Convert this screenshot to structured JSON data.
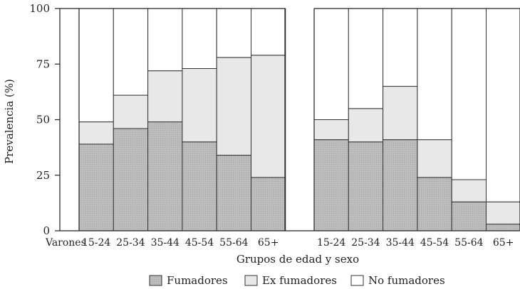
{
  "chart_data": {
    "type": "bar",
    "stacked": true,
    "ylabel": "Prevalencia (%)",
    "xlabel": "Grupos de edad y sexo",
    "ylim": [
      0,
      100
    ],
    "yticks": [
      0,
      25,
      50,
      75,
      100
    ],
    "grid": false,
    "legend_position": "bottom",
    "group_labels": [
      "Varones",
      ""
    ],
    "categories": [
      "15-24",
      "25-34",
      "35-44",
      "45-54",
      "55-64",
      "65+"
    ],
    "groups": [
      {
        "label": "Varones",
        "series": [
          {
            "name": "Fumadores",
            "values": [
              39,
              46,
              49,
              40,
              34,
              24
            ]
          },
          {
            "name": "Ex fumadores",
            "values": [
              10,
              15,
              23,
              33,
              44,
              55
            ]
          },
          {
            "name": "No fumadores",
            "values": [
              51,
              39,
              28,
              27,
              22,
              21
            ]
          }
        ]
      },
      {
        "label": "",
        "series": [
          {
            "name": "Fumadores",
            "values": [
              41,
              40,
              41,
              24,
              13,
              3
            ]
          },
          {
            "name": "Ex fumadores",
            "values": [
              9,
              15,
              24,
              17,
              10,
              10
            ]
          },
          {
            "name": "No fumadores",
            "values": [
              50,
              45,
              35,
              59,
              77,
              87
            ]
          }
        ]
      }
    ],
    "legend": [
      "Fumadores",
      "Ex fumadores",
      "No fumadores"
    ],
    "colors": {
      "Fumadores": "#bbbbbb",
      "Ex fumadores": "#e8e8e8",
      "No fumadores": "#ffffff"
    }
  }
}
